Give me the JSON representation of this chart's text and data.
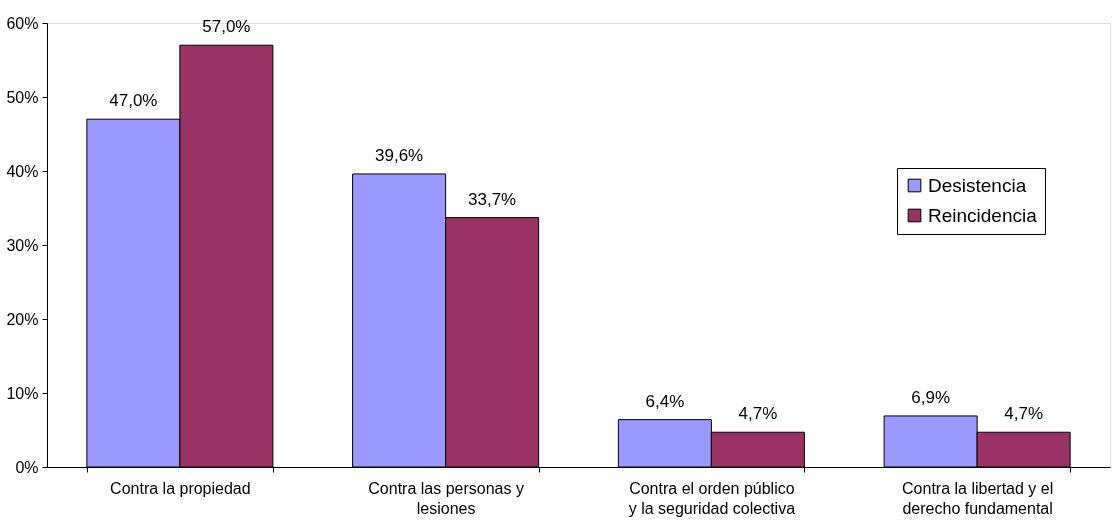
{
  "chart_data": {
    "type": "bar",
    "categories": [
      "Contra la propiedad",
      "Contra las personas y lesiones",
      "Contra el orden público y la seguridad colectiva",
      "Contra la libertad y el derecho fundamental"
    ],
    "series": [
      {
        "name": "Desistencia",
        "color": "#9999ff",
        "values": [
          47.0,
          39.6,
          6.4,
          6.9
        ],
        "value_labels": [
          "47,0%",
          "39,6%",
          "6,4%",
          "6,9%"
        ]
      },
      {
        "name": "Reincidencia",
        "color": "#993366",
        "values": [
          57.0,
          33.7,
          4.7,
          4.7
        ],
        "value_labels": [
          "57,0%",
          "33,7%",
          "4,7%",
          "4,7%"
        ]
      }
    ],
    "ylim": [
      0,
      60
    ],
    "yticks": [
      {
        "value": 0,
        "label": "0%"
      },
      {
        "value": 10,
        "label": "10%"
      },
      {
        "value": 20,
        "label": "20%"
      },
      {
        "value": 30,
        "label": "30%"
      },
      {
        "value": 40,
        "label": "40%"
      },
      {
        "value": 50,
        "label": "50%"
      },
      {
        "value": 60,
        "label": "60%"
      }
    ],
    "grid": false,
    "legend": "right"
  }
}
